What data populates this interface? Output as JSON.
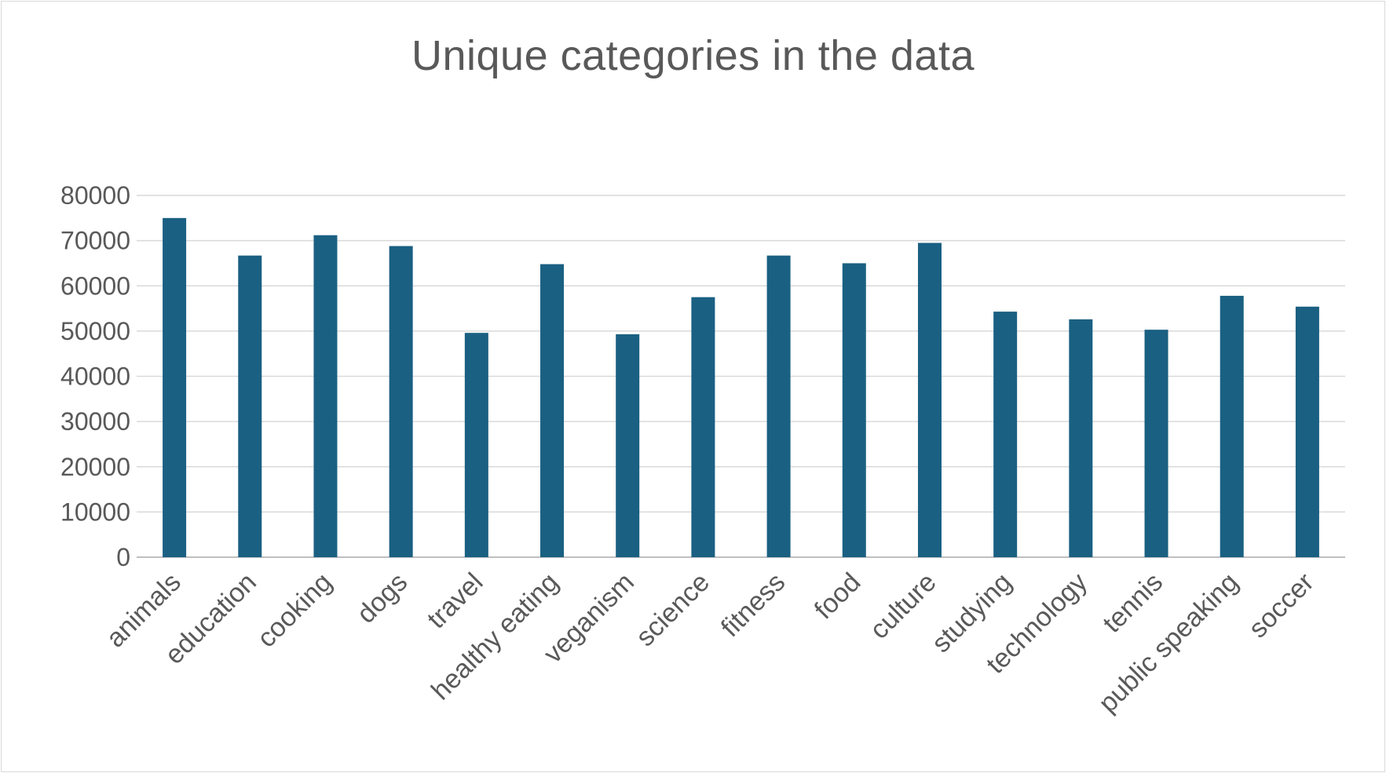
{
  "chart_data": {
    "type": "bar",
    "title": "Unique categories in the data",
    "xlabel": "",
    "ylabel": "",
    "categories": [
      "animals",
      "education",
      "cooking",
      "dogs",
      "travel",
      "healthy eating",
      "veganism",
      "science",
      "fitness",
      "food",
      "culture",
      "studying",
      "technology",
      "tennis",
      "public speaking",
      "soccer"
    ],
    "values": [
      75000,
      66700,
      71200,
      68800,
      49600,
      64800,
      49300,
      57500,
      66700,
      65000,
      69500,
      54300,
      52600,
      50300,
      57800,
      55400
    ],
    "ylim": [
      0,
      80000
    ],
    "yticks": [
      "0",
      "10000",
      "20000",
      "30000",
      "40000",
      "50000",
      "60000",
      "70000",
      "80000"
    ],
    "grid": true,
    "legend": "none",
    "bar_color": "#1a6082"
  }
}
